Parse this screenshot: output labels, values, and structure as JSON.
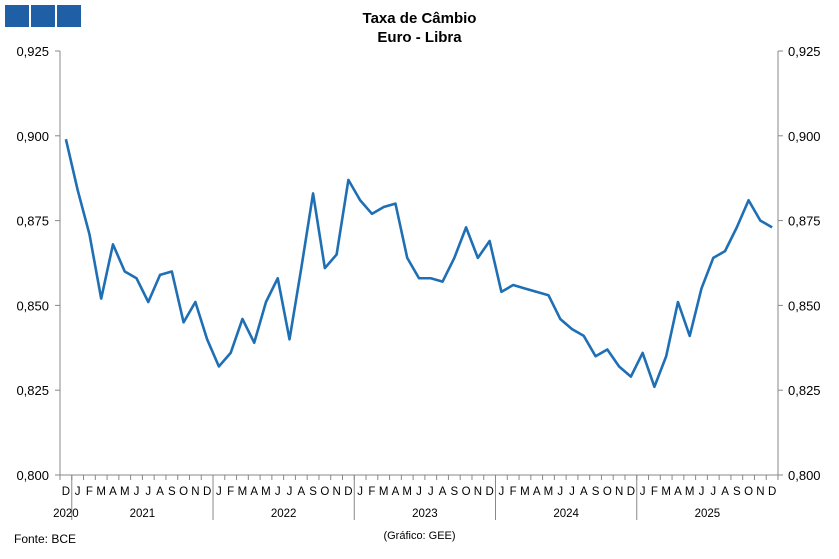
{
  "header": {
    "logo_blocks": 3,
    "logo_color": "#1f5fa6",
    "title_line1": "Taxa de Câmbio",
    "title_line2": "Euro - Libra"
  },
  "footer": {
    "source": "Fonte: BCE",
    "credit": "(Gráfico: GEE)"
  },
  "chart_data": {
    "type": "line",
    "series_color": "#1f6fb5",
    "y_ticks": [
      "0,800",
      "0,825",
      "0,850",
      "0,875",
      "0,900",
      "0,925"
    ],
    "ylim": [
      0.8,
      0.925
    ],
    "grid": false,
    "dual_axis": true,
    "x_month_letters": [
      "D",
      "J",
      "F",
      "M",
      "A",
      "M",
      "J",
      "J",
      "A",
      "S",
      "O",
      "N",
      "D",
      "J",
      "F",
      "M",
      "A",
      "M",
      "J",
      "J",
      "A",
      "S",
      "O",
      "N",
      "D",
      "J",
      "F",
      "M",
      "A",
      "M",
      "J",
      "J",
      "A",
      "S",
      "O",
      "N",
      "D",
      "J",
      "F",
      "M",
      "A",
      "M",
      "J",
      "J",
      "A",
      "S",
      "O",
      "N",
      "D",
      "J",
      "F",
      "M",
      "A",
      "M",
      "J",
      "J",
      "A",
      "S",
      "O",
      "N",
      "D"
    ],
    "year_labels": [
      "2020",
      "2021",
      "2022",
      "2023",
      "2024",
      "2025"
    ],
    "series": [
      {
        "values": [
          0.899,
          0.884,
          0.871,
          0.852,
          0.868,
          0.86,
          0.858,
          0.851,
          0.859,
          0.86,
          0.845,
          0.851,
          0.84,
          0.832,
          0.836,
          0.846,
          0.839,
          0.851,
          0.858,
          0.84,
          0.861,
          0.883,
          0.861,
          0.865,
          0.887,
          0.881,
          0.877,
          0.879,
          0.88,
          0.864,
          0.858,
          0.858,
          0.857,
          0.864,
          0.873,
          0.864,
          0.869,
          0.854,
          0.856,
          0.855,
          0.854,
          0.853,
          0.846,
          0.843,
          0.841,
          0.835,
          0.837,
          0.832,
          0.829,
          0.836,
          0.826,
          0.835,
          0.851,
          0.841,
          0.855,
          0.864,
          0.866,
          0.873,
          0.881,
          0.875,
          0.873
        ]
      }
    ]
  }
}
